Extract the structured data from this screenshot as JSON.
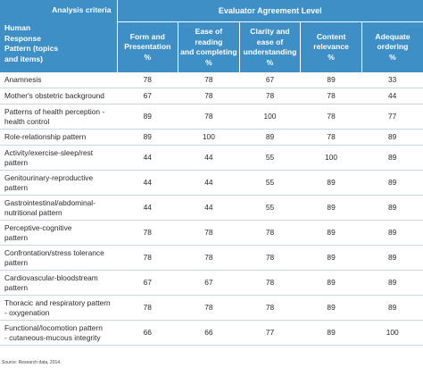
{
  "header": {
    "analysis_criteria": "Analysis criteria",
    "row_header_lines": [
      "Human",
      "Response",
      "Pattern (topics",
      "and items)"
    ],
    "group_title": "Evaluator Agreement Level",
    "columns": [
      [
        "Form and",
        "Presentation",
        "%"
      ],
      [
        "Ease of reading",
        "and completing",
        "%"
      ],
      [
        "Clarity and",
        "ease of",
        "understanding",
        "%"
      ],
      [
        "Content",
        "relevance",
        "%"
      ],
      [
        "Adequate",
        "ordering",
        "%"
      ]
    ]
  },
  "rows": [
    {
      "label": [
        "Anamnesis"
      ],
      "values": [
        "78",
        "78",
        "67",
        "89",
        "33"
      ]
    },
    {
      "label": [
        "Mother's obstetric background"
      ],
      "values": [
        "67",
        "78",
        "78",
        "78",
        "44"
      ]
    },
    {
      "label": [
        "Patterns of health perception -",
        "health control"
      ],
      "values": [
        "89",
        "78",
        "100",
        "78",
        "77"
      ]
    },
    {
      "label": [
        "Role-relationship pattern"
      ],
      "values": [
        "89",
        "100",
        "89",
        "78",
        "89"
      ]
    },
    {
      "label": [
        "Activity/exercise-sleep/rest",
        "pattern"
      ],
      "values": [
        "44",
        "44",
        "55",
        "100",
        "89"
      ]
    },
    {
      "label": [
        "Genitourinary-reproductive",
        "pattern"
      ],
      "values": [
        "44",
        "44",
        "55",
        "89",
        "89"
      ]
    },
    {
      "label": [
        "Gastrointestinal/abdominal-",
        "nutritional pattern"
      ],
      "values": [
        "44",
        "44",
        "55",
        "89",
        "89"
      ]
    },
    {
      "label": [
        "Perceptive-cognitive",
        "pattern"
      ],
      "values": [
        "78",
        "78",
        "78",
        "89",
        "89"
      ]
    },
    {
      "label": [
        "Confrontation/stress tolerance",
        "pattern"
      ],
      "values": [
        "78",
        "78",
        "78",
        "89",
        "89"
      ]
    },
    {
      "label": [
        "Cardiovascular-bloodstream",
        "pattern"
      ],
      "values": [
        "67",
        "67",
        "78",
        "89",
        "89"
      ]
    },
    {
      "label": [
        "Thoracic and respiratory pattern",
        "- oxygenation"
      ],
      "values": [
        "78",
        "78",
        "78",
        "89",
        "89"
      ]
    },
    {
      "label": [
        "Functional/locomotion pattern",
        "- cutaneous-mucous integrity"
      ],
      "values": [
        "66",
        "66",
        "77",
        "89",
        "100"
      ]
    }
  ],
  "source_note": "Source: Research data, 2014.",
  "colors": {
    "header_bg": "#3d8fc6",
    "header_text": "#ffffff",
    "row_rule": "#c6d9ea",
    "text": "#2a2a2a"
  }
}
